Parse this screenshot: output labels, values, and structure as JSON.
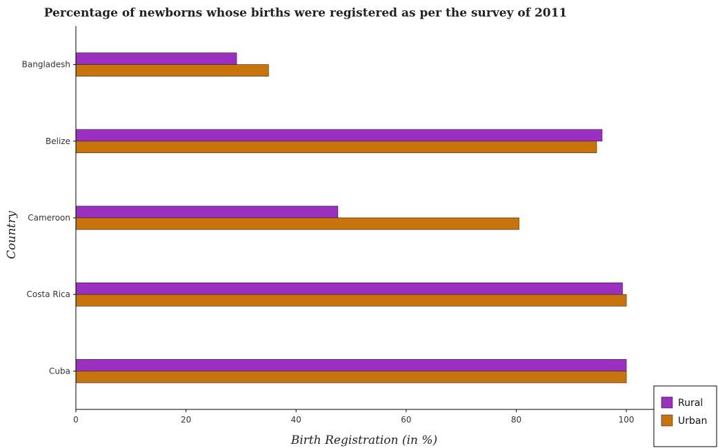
{
  "colors": {
    "rural": "#9b30c0",
    "urban": "#c9730c",
    "axis": "#000000",
    "bar_edge": "#222222"
  },
  "chart_data": {
    "type": "bar",
    "orientation": "horizontal",
    "title": "Percentage of newborns whose births were registered as per the survey of 2011",
    "xlabel": "Birth Registration (in %)",
    "ylabel": "Country",
    "categories": [
      "Bangladesh",
      "Belize",
      "Cameroon",
      "Costa Rica",
      "Cuba"
    ],
    "series": [
      {
        "name": "Rural",
        "values": [
          29.2,
          95.6,
          47.6,
          99.3,
          100
        ]
      },
      {
        "name": "Urban",
        "values": [
          35.0,
          94.6,
          80.5,
          100,
          100
        ]
      }
    ],
    "xlim": [
      0,
      105
    ],
    "xticks": [
      "0",
      "20",
      "40",
      "60",
      "80",
      "100"
    ],
    "grid": false,
    "legend_position": "bottom-right"
  }
}
